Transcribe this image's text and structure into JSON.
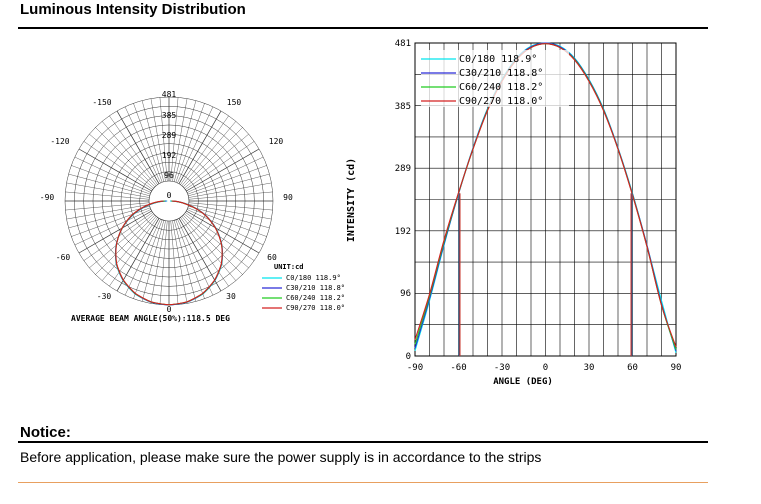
{
  "header": {
    "title": "Luminous Intensity Distribution"
  },
  "notice": {
    "title": "Notice:",
    "text": "Before application, please make sure the power supply is in accordance to the strips"
  },
  "colors": {
    "c0_180": "#00e5ee",
    "c30_210": "#2a2ad8",
    "c60_240": "#22cc22",
    "c90_270": "#d42020",
    "grid": "#000000",
    "rule_orange": "#e8a060"
  },
  "chart_data": [
    {
      "type": "polar",
      "radial_ticks": [
        "481",
        "385",
        "289",
        "192",
        "96",
        "0"
      ],
      "radial_values": [
        481,
        385,
        289,
        192,
        96,
        0
      ],
      "angle_labels": [
        "-150",
        "150",
        "-120",
        "120",
        "-90",
        "90",
        "-60",
        "60",
        "-30",
        "30",
        "0"
      ],
      "unit_label": "UNIT:cd",
      "legend": [
        {
          "name": "C0/180 118.9°",
          "color": "#00e5ee"
        },
        {
          "name": "C30/210 118.8°",
          "color": "#2a2ad8"
        },
        {
          "name": "C60/240 118.2°",
          "color": "#22cc22"
        },
        {
          "name": "C90/270 118.0°",
          "color": "#d42020"
        }
      ],
      "caption": "AVERAGE BEAM ANGLE(50%):118.5 DEG",
      "max_intensity": 481
    },
    {
      "type": "line",
      "xlabel": "ANGLE (DEG)",
      "ylabel": "INTENSITY (cd)",
      "xlim": [
        -90,
        90
      ],
      "ylim": [
        0,
        481
      ],
      "x_ticks": [
        "-90",
        "-60",
        "-30",
        "0",
        "30",
        "60",
        "90"
      ],
      "y_ticks": [
        "0",
        "96",
        "192",
        "289",
        "385",
        "481"
      ],
      "x": [
        -90,
        -80,
        -70,
        -60,
        -50,
        -40,
        -30,
        -20,
        -10,
        0,
        10,
        20,
        30,
        40,
        50,
        60,
        70,
        80,
        90
      ],
      "series": [
        {
          "name": "C0/180 118.9°",
          "color": "#00e5ee",
          "values": [
            8,
            85,
            170,
            250,
            320,
            380,
            425,
            458,
            476,
            481,
            476,
            458,
            425,
            380,
            320,
            250,
            170,
            85,
            5
          ]
        },
        {
          "name": "C30/210 118.8°",
          "color": "#2a2ad8",
          "values": [
            12,
            88,
            172,
            249,
            319,
            379,
            424,
            457,
            475,
            481,
            475,
            457,
            424,
            379,
            319,
            249,
            170,
            80,
            8
          ]
        },
        {
          "name": "C60/240 118.2°",
          "color": "#22cc22",
          "values": [
            18,
            92,
            175,
            250,
            318,
            378,
            423,
            456,
            474,
            480,
            474,
            456,
            423,
            378,
            318,
            248,
            168,
            78,
            10
          ]
        },
        {
          "name": "C90/270 118.0°",
          "color": "#d42020",
          "values": [
            25,
            95,
            178,
            251,
            318,
            377,
            422,
            455,
            474,
            480,
            474,
            455,
            422,
            377,
            318,
            247,
            168,
            78,
            14
          ]
        }
      ]
    }
  ]
}
